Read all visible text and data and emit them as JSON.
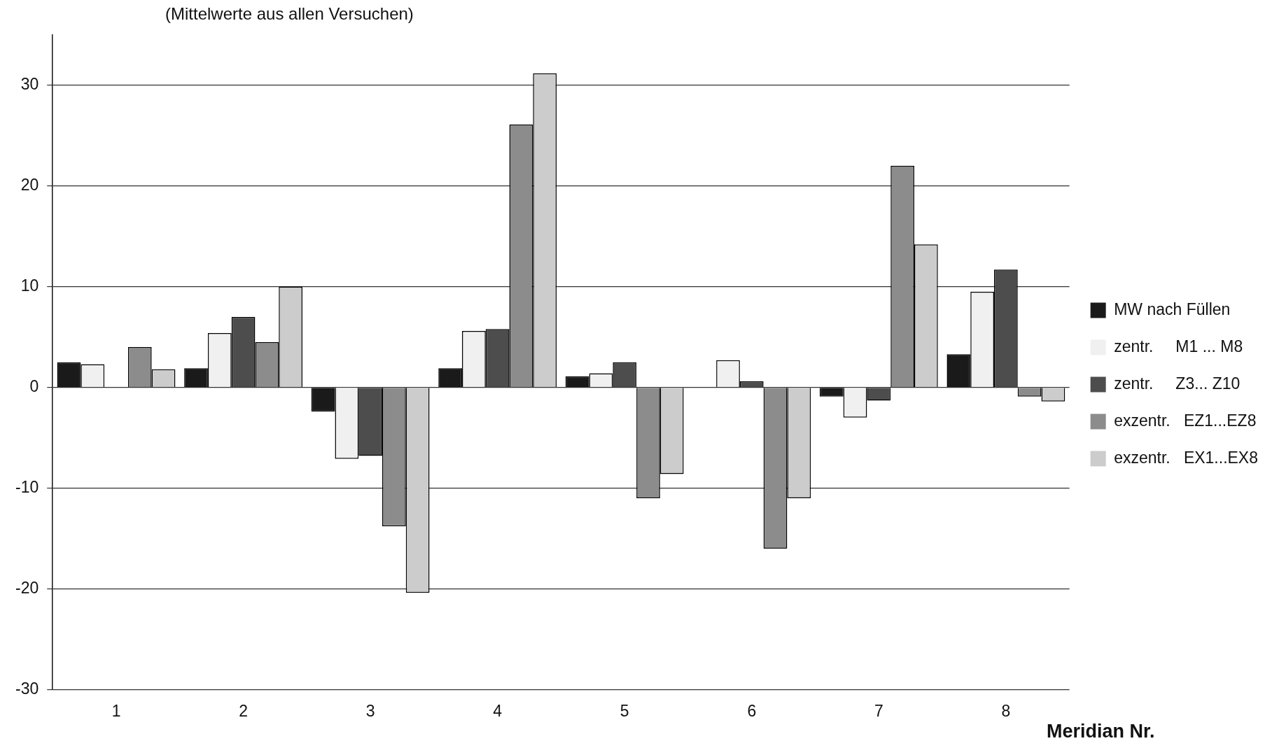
{
  "chart_data": {
    "type": "bar",
    "title": "(Mittelwerte aus allen Versuchen)",
    "xlabel": "Meridian Nr.",
    "categories": [
      "1",
      "2",
      "3",
      "4",
      "5",
      "6",
      "7",
      "8"
    ],
    "series": [
      {
        "name": "MW nach Füllen",
        "color": "#1a1a1a",
        "values": [
          2.5,
          1.9,
          -2.4,
          1.9,
          1.1,
          null,
          -0.9,
          3.3
        ]
      },
      {
        "name": "zentr.     M1 ... M8",
        "color": "#f0f0f0",
        "values": [
          2.3,
          5.4,
          -7.1,
          5.6,
          1.4,
          2.7,
          -3.0,
          9.5
        ]
      },
      {
        "name": "zentr.     Z3... Z10",
        "color": "#4d4d4d",
        "values": [
          null,
          7.0,
          -6.8,
          5.8,
          2.5,
          0.6,
          -1.3,
          11.7
        ]
      },
      {
        "name": "exzentr.   EZ1...EZ8",
        "color": "#8c8c8c",
        "values": [
          4.0,
          4.5,
          -13.8,
          26.1,
          -11.0,
          -16.0,
          22.0,
          -0.9
        ]
      },
      {
        "name": "exzentr.   EX1...EX8",
        "color": "#cccccc",
        "values": [
          1.8,
          10.0,
          -20.4,
          31.2,
          -8.6,
          -11.0,
          14.2,
          -1.4
        ]
      }
    ],
    "ylim": [
      -30,
      35
    ],
    "yticks": [
      -30,
      -20,
      -10,
      0,
      10,
      20,
      30
    ],
    "grid": "y",
    "legend": "right"
  }
}
